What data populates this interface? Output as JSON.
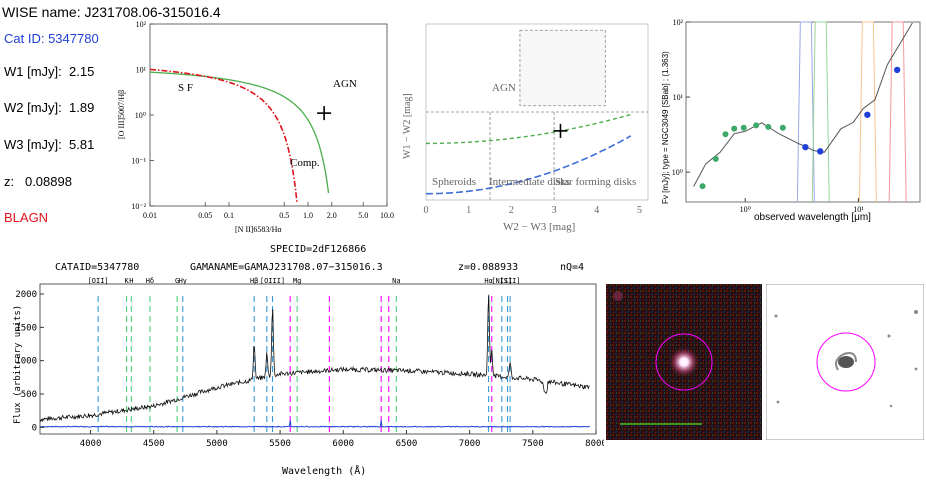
{
  "info": {
    "wise_name": "WISE name: J231708.06-315016.4",
    "cat_id": "Cat ID: 5347780",
    "w1_label": "W1 [mJy]:",
    "w1_value": "2.15",
    "w2_label": "W2 [mJy]:",
    "w2_value": "1.89",
    "w3_label": "W3 [mJy]:",
    "w3_value": "5.81",
    "z_label": "z:",
    "z_value": "0.08898",
    "class_label": "BLAGN"
  },
  "colors": {
    "cat_id": "#1f3fd6",
    "blagn": "#e0141c",
    "marker": "#ff00ff"
  },
  "chart_data": [
    {
      "type": "scatter",
      "panel": "BPT diagram",
      "xlabel": "[N II]6583/Hα",
      "ylabel": "[O III]5007/Hβ",
      "xscale": "log",
      "yscale": "log",
      "xlim": [
        0.01,
        10.0
      ],
      "ylim": [
        0.01,
        100
      ],
      "xticks": [
        "0.01",
        "0.05",
        "0.1",
        "0.5",
        "1.0",
        "2.0",
        "5.0",
        "10.0"
      ],
      "yticks": [
        "10⁻²",
        "10⁻¹",
        "10⁰",
        "10¹",
        "10²"
      ],
      "region_labels": [
        "S F",
        "AGN",
        "Comp."
      ],
      "point": {
        "x": 1.6,
        "y": 1.1
      },
      "curves": [
        {
          "style": "solid",
          "color": "#4cae4c"
        },
        {
          "style": "dash-dot",
          "color": "#e0141c"
        }
      ]
    },
    {
      "type": "scatter",
      "panel": "WISE color-color",
      "xlabel": "W2 − W3 [mag]",
      "ylabel": "W1 − W2 [mag]",
      "xlim": [
        0,
        5.2
      ],
      "ylim": [
        -0.6,
        2.2
      ],
      "xticks": [
        "0",
        "1",
        "2",
        "3",
        "4",
        "5"
      ],
      "region_labels": [
        "AGN",
        "Spheroids",
        "Intermediate disks",
        "Star forming disks"
      ],
      "point": {
        "x": 3.15,
        "y": 0.5
      },
      "curves": [
        {
          "style": "dashed",
          "color": "#4cae4c"
        },
        {
          "style": "dashed",
          "color": "#3f6fd8"
        }
      ]
    },
    {
      "type": "line",
      "panel": "SED",
      "xlabel": "observed wavelength [μm]",
      "ylabel": "Fν [mJy]; type = NGC3049 [SBab] ; (1.363)",
      "xscale": "log",
      "yscale": "log",
      "xticks": [
        "10⁰",
        "10¹"
      ],
      "yticks": [
        "10⁰",
        "10¹",
        "10²"
      ],
      "photometry_points": {
        "green": [
          [
            0.42,
            0.65
          ],
          [
            0.55,
            1.5
          ],
          [
            0.67,
            3.2
          ],
          [
            0.8,
            3.8
          ],
          [
            0.97,
            3.9
          ],
          [
            1.25,
            4.2
          ],
          [
            1.6,
            4.0
          ],
          [
            2.15,
            3.9
          ]
        ],
        "blue": [
          [
            3.4,
            2.15
          ],
          [
            4.6,
            1.89
          ],
          [
            12.0,
            5.81
          ],
          [
            22.0,
            23.0
          ]
        ]
      }
    },
    {
      "type": "line",
      "panel": "spectrum",
      "title_specid": "SPECID=2dF126866",
      "cataid": "CATAID=5347780",
      "gamaname": "GAMANAME=GAMAJ231708.07−315016.3",
      "redshift": "z=0.088933",
      "nq": "nQ=4",
      "xlabel": "Wavelength (Å)",
      "ylabel": "Flux (arbitrary units)",
      "xlim": [
        3600,
        8000
      ],
      "ylim": [
        -100,
        2150
      ],
      "xticks": [
        "4000",
        "4500",
        "5000",
        "5500",
        "6000",
        "6500",
        "7000",
        "7500",
        "8000"
      ],
      "yticks": [
        "0",
        "500",
        "1000",
        "1500",
        "2000"
      ],
      "line_labels": [
        {
          "label": "[OII]",
          "x": 4060
        },
        {
          "label": "K",
          "x": 4285
        },
        {
          "label": "H",
          "x": 4323
        },
        {
          "label": "Hδ",
          "x": 4470
        },
        {
          "label": "G",
          "x": 4685
        },
        {
          "label": "Hγ",
          "x": 4730
        },
        {
          "label": "Hβ",
          "x": 5295
        },
        {
          "label": "[OIII]",
          "x": 5440
        },
        {
          "label": "Mg",
          "x": 5635
        },
        {
          "label": "Na",
          "x": 6420
        },
        {
          "label": "Hα",
          "x": 7150
        },
        {
          "label": "[NII]",
          "x": 7255
        },
        {
          "label": "[SII]",
          "x": 7320
        }
      ],
      "marker_lines": [
        {
          "x": 4060,
          "color": "#3a9ad9"
        },
        {
          "x": 4285,
          "color": "#4cd17a"
        },
        {
          "x": 4323,
          "color": "#4cd17a"
        },
        {
          "x": 4470,
          "color": "#4cd17a"
        },
        {
          "x": 4685,
          "color": "#4cd17a"
        },
        {
          "x": 4730,
          "color": "#3a9ad9"
        },
        {
          "x": 5295,
          "color": "#3a9ad9"
        },
        {
          "x": 5395,
          "color": "#3a9ad9"
        },
        {
          "x": 5440,
          "color": "#3a9ad9"
        },
        {
          "x": 5580,
          "color": "#ff00ff"
        },
        {
          "x": 5635,
          "color": "#4cd17a"
        },
        {
          "x": 5890,
          "color": "#ff00ff"
        },
        {
          "x": 6300,
          "color": "#ff00ff"
        },
        {
          "x": 6360,
          "color": "#ff00ff"
        },
        {
          "x": 6420,
          "color": "#4cd17a"
        },
        {
          "x": 7150,
          "color": "#3a9ad9"
        },
        {
          "x": 7175,
          "color": "#ff00ff"
        },
        {
          "x": 7255,
          "color": "#3a9ad9"
        },
        {
          "x": 7300,
          "color": "#3a9ad9"
        },
        {
          "x": 7320,
          "color": "#3a9ad9"
        }
      ],
      "continuum_anchors": [
        [
          3600,
          120
        ],
        [
          4000,
          180
        ],
        [
          4500,
          320
        ],
        [
          5000,
          600
        ],
        [
          5500,
          800
        ],
        [
          6000,
          870
        ],
        [
          6500,
          850
        ],
        [
          7000,
          800
        ],
        [
          7500,
          720
        ],
        [
          7900,
          610
        ]
      ],
      "emission_peaks": [
        {
          "x": 5295,
          "height": 550
        },
        {
          "x": 5395,
          "height": 350
        },
        {
          "x": 5440,
          "height": 1050
        },
        {
          "x": 7150,
          "height": 1250
        },
        {
          "x": 7175,
          "height": 400
        },
        {
          "x": 7320,
          "height": 230
        }
      ]
    }
  ]
}
